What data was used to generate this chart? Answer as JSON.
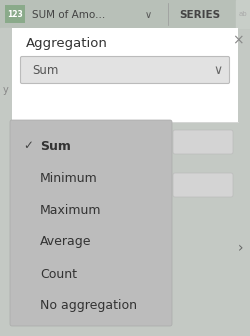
{
  "bg_color": "#c4c9c4",
  "header_bg": "#b8c0b8",
  "header_text": "SUM of Amo...",
  "header_text_color": "#444444",
  "series_text": "SERIES",
  "series_text_color": "#444444",
  "modal_bg": "#ffffff",
  "modal_title": "Aggregation",
  "modal_title_color": "#333333",
  "modal_title_fontsize": 9.5,
  "dropdown_bg": "#e2e2e2",
  "dropdown_text": "Sum",
  "dropdown_text_color": "#555555",
  "close_x": "×",
  "dropdown_list_bg": "#bcbcbc",
  "items": [
    "Sum",
    "Minimum",
    "Maximum",
    "Average",
    "Count",
    "No aggregation"
  ],
  "selected_item": "Sum",
  "item_fontsize": 9,
  "item_color": "#333333",
  "selected_fontweight": "bold",
  "checkmark": "✓",
  "right_arrow": "›",
  "side_pill_bg": "#d4d4d4",
  "side_pill_border": "#bbbbbb"
}
